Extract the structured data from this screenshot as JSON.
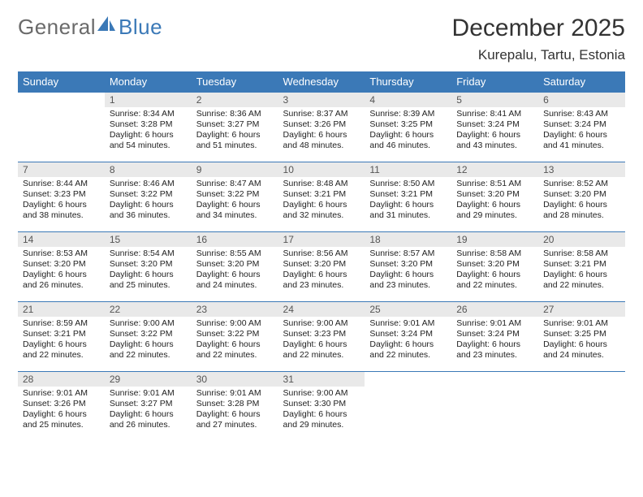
{
  "logo": {
    "text1": "General",
    "text2": "Blue"
  },
  "title": "December 2025",
  "location": "Kurepalu, Tartu, Estonia",
  "colors": {
    "header_bg": "#3b79b7",
    "header_text": "#ffffff",
    "daynum_bg": "#e9e9e9",
    "daynum_text": "#555555",
    "body_text": "#222222",
    "logo_gray": "#6a6a6a",
    "logo_blue": "#3b79b7",
    "page_bg": "#ffffff",
    "border": "#3b79b7"
  },
  "layout": {
    "columns": 7,
    "rows": 5,
    "first_day_column": 1
  },
  "weekdays": [
    "Sunday",
    "Monday",
    "Tuesday",
    "Wednesday",
    "Thursday",
    "Friday",
    "Saturday"
  ],
  "days": [
    {
      "n": 1,
      "sr": "8:34 AM",
      "ss": "3:28 PM",
      "dl": "6 hours and 54 minutes."
    },
    {
      "n": 2,
      "sr": "8:36 AM",
      "ss": "3:27 PM",
      "dl": "6 hours and 51 minutes."
    },
    {
      "n": 3,
      "sr": "8:37 AM",
      "ss": "3:26 PM",
      "dl": "6 hours and 48 minutes."
    },
    {
      "n": 4,
      "sr": "8:39 AM",
      "ss": "3:25 PM",
      "dl": "6 hours and 46 minutes."
    },
    {
      "n": 5,
      "sr": "8:41 AM",
      "ss": "3:24 PM",
      "dl": "6 hours and 43 minutes."
    },
    {
      "n": 6,
      "sr": "8:43 AM",
      "ss": "3:24 PM",
      "dl": "6 hours and 41 minutes."
    },
    {
      "n": 7,
      "sr": "8:44 AM",
      "ss": "3:23 PM",
      "dl": "6 hours and 38 minutes."
    },
    {
      "n": 8,
      "sr": "8:46 AM",
      "ss": "3:22 PM",
      "dl": "6 hours and 36 minutes."
    },
    {
      "n": 9,
      "sr": "8:47 AM",
      "ss": "3:22 PM",
      "dl": "6 hours and 34 minutes."
    },
    {
      "n": 10,
      "sr": "8:48 AM",
      "ss": "3:21 PM",
      "dl": "6 hours and 32 minutes."
    },
    {
      "n": 11,
      "sr": "8:50 AM",
      "ss": "3:21 PM",
      "dl": "6 hours and 31 minutes."
    },
    {
      "n": 12,
      "sr": "8:51 AM",
      "ss": "3:20 PM",
      "dl": "6 hours and 29 minutes."
    },
    {
      "n": 13,
      "sr": "8:52 AM",
      "ss": "3:20 PM",
      "dl": "6 hours and 28 minutes."
    },
    {
      "n": 14,
      "sr": "8:53 AM",
      "ss": "3:20 PM",
      "dl": "6 hours and 26 minutes."
    },
    {
      "n": 15,
      "sr": "8:54 AM",
      "ss": "3:20 PM",
      "dl": "6 hours and 25 minutes."
    },
    {
      "n": 16,
      "sr": "8:55 AM",
      "ss": "3:20 PM",
      "dl": "6 hours and 24 minutes."
    },
    {
      "n": 17,
      "sr": "8:56 AM",
      "ss": "3:20 PM",
      "dl": "6 hours and 23 minutes."
    },
    {
      "n": 18,
      "sr": "8:57 AM",
      "ss": "3:20 PM",
      "dl": "6 hours and 23 minutes."
    },
    {
      "n": 19,
      "sr": "8:58 AM",
      "ss": "3:20 PM",
      "dl": "6 hours and 22 minutes."
    },
    {
      "n": 20,
      "sr": "8:58 AM",
      "ss": "3:21 PM",
      "dl": "6 hours and 22 minutes."
    },
    {
      "n": 21,
      "sr": "8:59 AM",
      "ss": "3:21 PM",
      "dl": "6 hours and 22 minutes."
    },
    {
      "n": 22,
      "sr": "9:00 AM",
      "ss": "3:22 PM",
      "dl": "6 hours and 22 minutes."
    },
    {
      "n": 23,
      "sr": "9:00 AM",
      "ss": "3:22 PM",
      "dl": "6 hours and 22 minutes."
    },
    {
      "n": 24,
      "sr": "9:00 AM",
      "ss": "3:23 PM",
      "dl": "6 hours and 22 minutes."
    },
    {
      "n": 25,
      "sr": "9:01 AM",
      "ss": "3:24 PM",
      "dl": "6 hours and 22 minutes."
    },
    {
      "n": 26,
      "sr": "9:01 AM",
      "ss": "3:24 PM",
      "dl": "6 hours and 23 minutes."
    },
    {
      "n": 27,
      "sr": "9:01 AM",
      "ss": "3:25 PM",
      "dl": "6 hours and 24 minutes."
    },
    {
      "n": 28,
      "sr": "9:01 AM",
      "ss": "3:26 PM",
      "dl": "6 hours and 25 minutes."
    },
    {
      "n": 29,
      "sr": "9:01 AM",
      "ss": "3:27 PM",
      "dl": "6 hours and 26 minutes."
    },
    {
      "n": 30,
      "sr": "9:01 AM",
      "ss": "3:28 PM",
      "dl": "6 hours and 27 minutes."
    },
    {
      "n": 31,
      "sr": "9:00 AM",
      "ss": "3:30 PM",
      "dl": "6 hours and 29 minutes."
    }
  ],
  "labels": {
    "sunrise": "Sunrise:",
    "sunset": "Sunset:",
    "daylight": "Daylight:"
  }
}
